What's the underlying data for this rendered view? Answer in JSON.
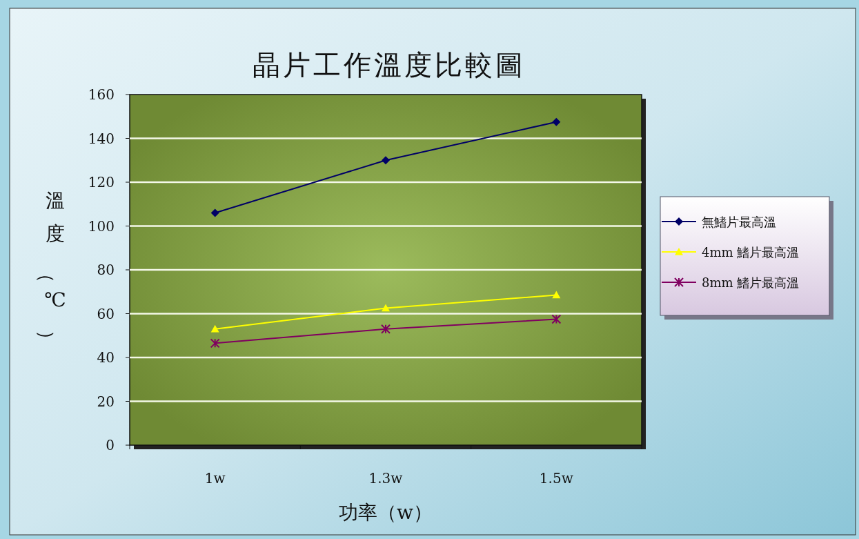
{
  "chart_data": {
    "type": "line",
    "title": "晶片工作溫度比較圖",
    "xlabel": "功率（w）",
    "ylabel": "溫度（℃）",
    "categories": [
      "1w",
      "1.3w",
      "1.5w"
    ],
    "series": [
      {
        "name": "無鰭片最高溫",
        "color": "#000066",
        "marker": "diamond",
        "values": [
          106,
          130,
          147.5
        ]
      },
      {
        "name": "4mm 鰭片最高溫",
        "color": "#ffff00",
        "marker": "triangle",
        "values": [
          53,
          62.5,
          68.5
        ]
      },
      {
        "name": "8mm 鰭片最高溫",
        "color": "#800060",
        "marker": "cross",
        "values": [
          46.5,
          53,
          57.5
        ]
      }
    ],
    "ylim": [
      0,
      160
    ],
    "yticks": [
      0,
      20,
      40,
      60,
      80,
      100,
      120,
      140,
      160
    ],
    "grid": "y",
    "legend": "right",
    "line_style": "solid"
  }
}
